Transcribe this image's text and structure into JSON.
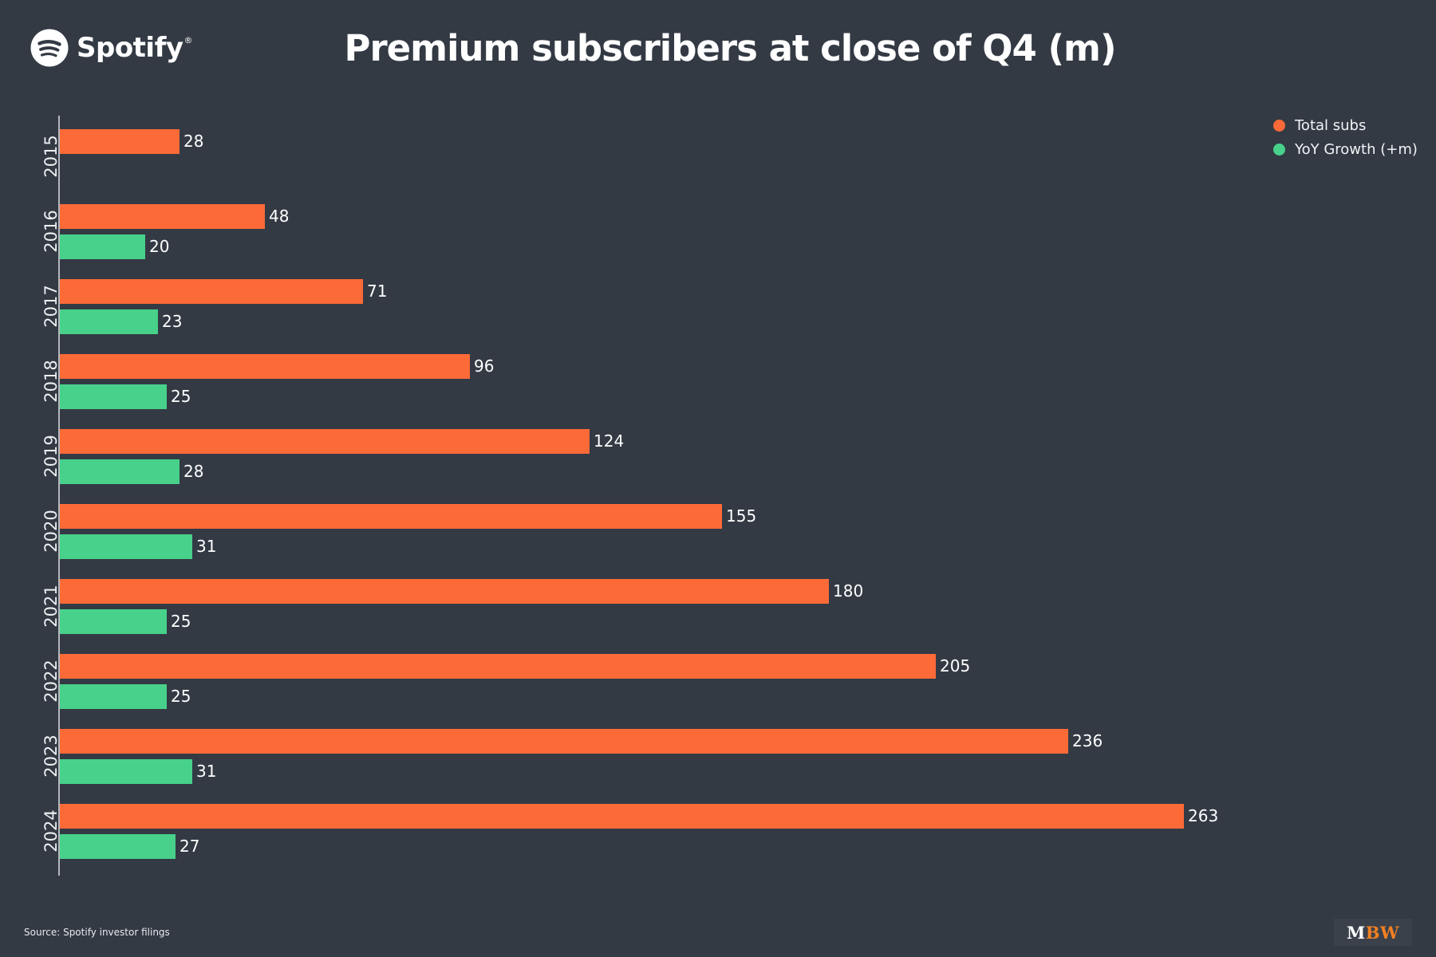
{
  "header": {
    "brand": "Spotify",
    "brand_mark": "®",
    "title": "Premium subscribers at close of Q4 (m)"
  },
  "chart_data": {
    "type": "bar",
    "orientation": "horizontal",
    "title": "Premium subscribers at close of Q4 (m)",
    "categories": [
      "2015",
      "2016",
      "2017",
      "2018",
      "2019",
      "2020",
      "2021",
      "2022",
      "2023",
      "2024"
    ],
    "series": [
      {
        "name": "Total subs",
        "color": "#fc6a38",
        "values": [
          28,
          48,
          71,
          96,
          124,
          155,
          180,
          205,
          236,
          263
        ]
      },
      {
        "name": "YoY Growth (+m)",
        "color": "#47d18a",
        "values": [
          null,
          20,
          23,
          25,
          28,
          31,
          25,
          25,
          31,
          27
        ]
      }
    ],
    "xlim": [
      0,
      280
    ],
    "value_labels": true,
    "grid": false,
    "legend_position": "upper right",
    "xlabel": "",
    "ylabel": ""
  },
  "colors": {
    "background": "#333a44",
    "total_subs": "#fc6a38",
    "yoy_growth": "#47d18a",
    "axis": "#b4b8be",
    "text": "#ffffff",
    "mbw_orange": "#f18021"
  },
  "footer": {
    "source": "Source: Spotify investor filings",
    "logo_m": "M",
    "logo_bw": "BW"
  }
}
